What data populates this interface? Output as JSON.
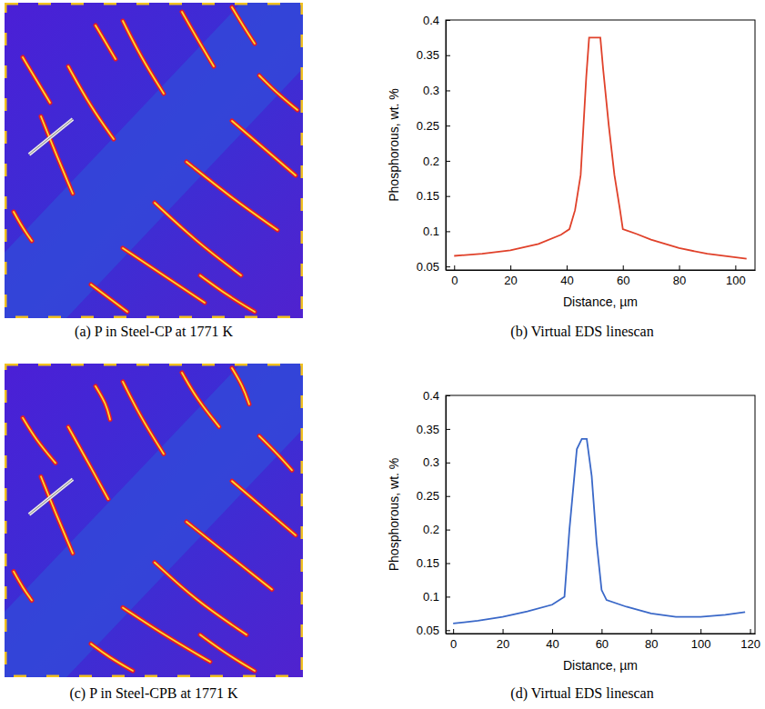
{
  "chart_data": [
    {
      "type": "image",
      "caption": "(a) P in Steel-CP at 1771 K"
    },
    {
      "type": "line",
      "caption": "(b) Virtual EDS linescan",
      "x_label": "Distance, µm",
      "y_label": "Phosphorous, wt. %",
      "x": [
        0,
        10,
        20,
        30,
        38,
        41,
        43,
        45,
        47,
        48,
        52,
        53,
        55,
        57,
        59,
        60,
        65,
        70,
        80,
        90,
        104
      ],
      "series": [
        {
          "color": "#e0412a",
          "values": [
            0.065,
            0.068,
            0.073,
            0.082,
            0.095,
            0.103,
            0.13,
            0.18,
            0.32,
            0.375,
            0.375,
            0.33,
            0.25,
            0.18,
            0.13,
            0.103,
            0.096,
            0.088,
            0.076,
            0.068,
            0.061
          ]
        }
      ],
      "xlim": [
        -3,
        107
      ],
      "ylim": [
        0.045,
        0.4
      ],
      "xticks": [
        0,
        20,
        40,
        60,
        80,
        100
      ],
      "yticks": [
        0.05,
        0.1,
        0.15,
        0.2,
        0.25,
        0.3,
        0.35,
        0.4
      ]
    },
    {
      "type": "image",
      "caption": "(c) P in Steel-CPB at 1771 K"
    },
    {
      "type": "line",
      "caption": "(d) Virtual EDS linescan",
      "x_label": "Distance, µm",
      "y_label": "Phosphorous, wt. %",
      "x": [
        0,
        10,
        20,
        30,
        40,
        45,
        47,
        50,
        52,
        54,
        56,
        58,
        60,
        62,
        70,
        80,
        90,
        100,
        110,
        118
      ],
      "series": [
        {
          "color": "#3a68c8",
          "values": [
            0.06,
            0.064,
            0.07,
            0.078,
            0.088,
            0.1,
            0.2,
            0.32,
            0.335,
            0.335,
            0.28,
            0.18,
            0.11,
            0.095,
            0.085,
            0.075,
            0.07,
            0.07,
            0.073,
            0.077
          ]
        }
      ],
      "xlim": [
        -3,
        122
      ],
      "ylim": [
        0.045,
        0.4
      ],
      "xticks": [
        0,
        20,
        40,
        60,
        80,
        100,
        120
      ],
      "yticks": [
        0.05,
        0.1,
        0.15,
        0.2,
        0.25,
        0.3,
        0.35,
        0.4
      ]
    }
  ]
}
